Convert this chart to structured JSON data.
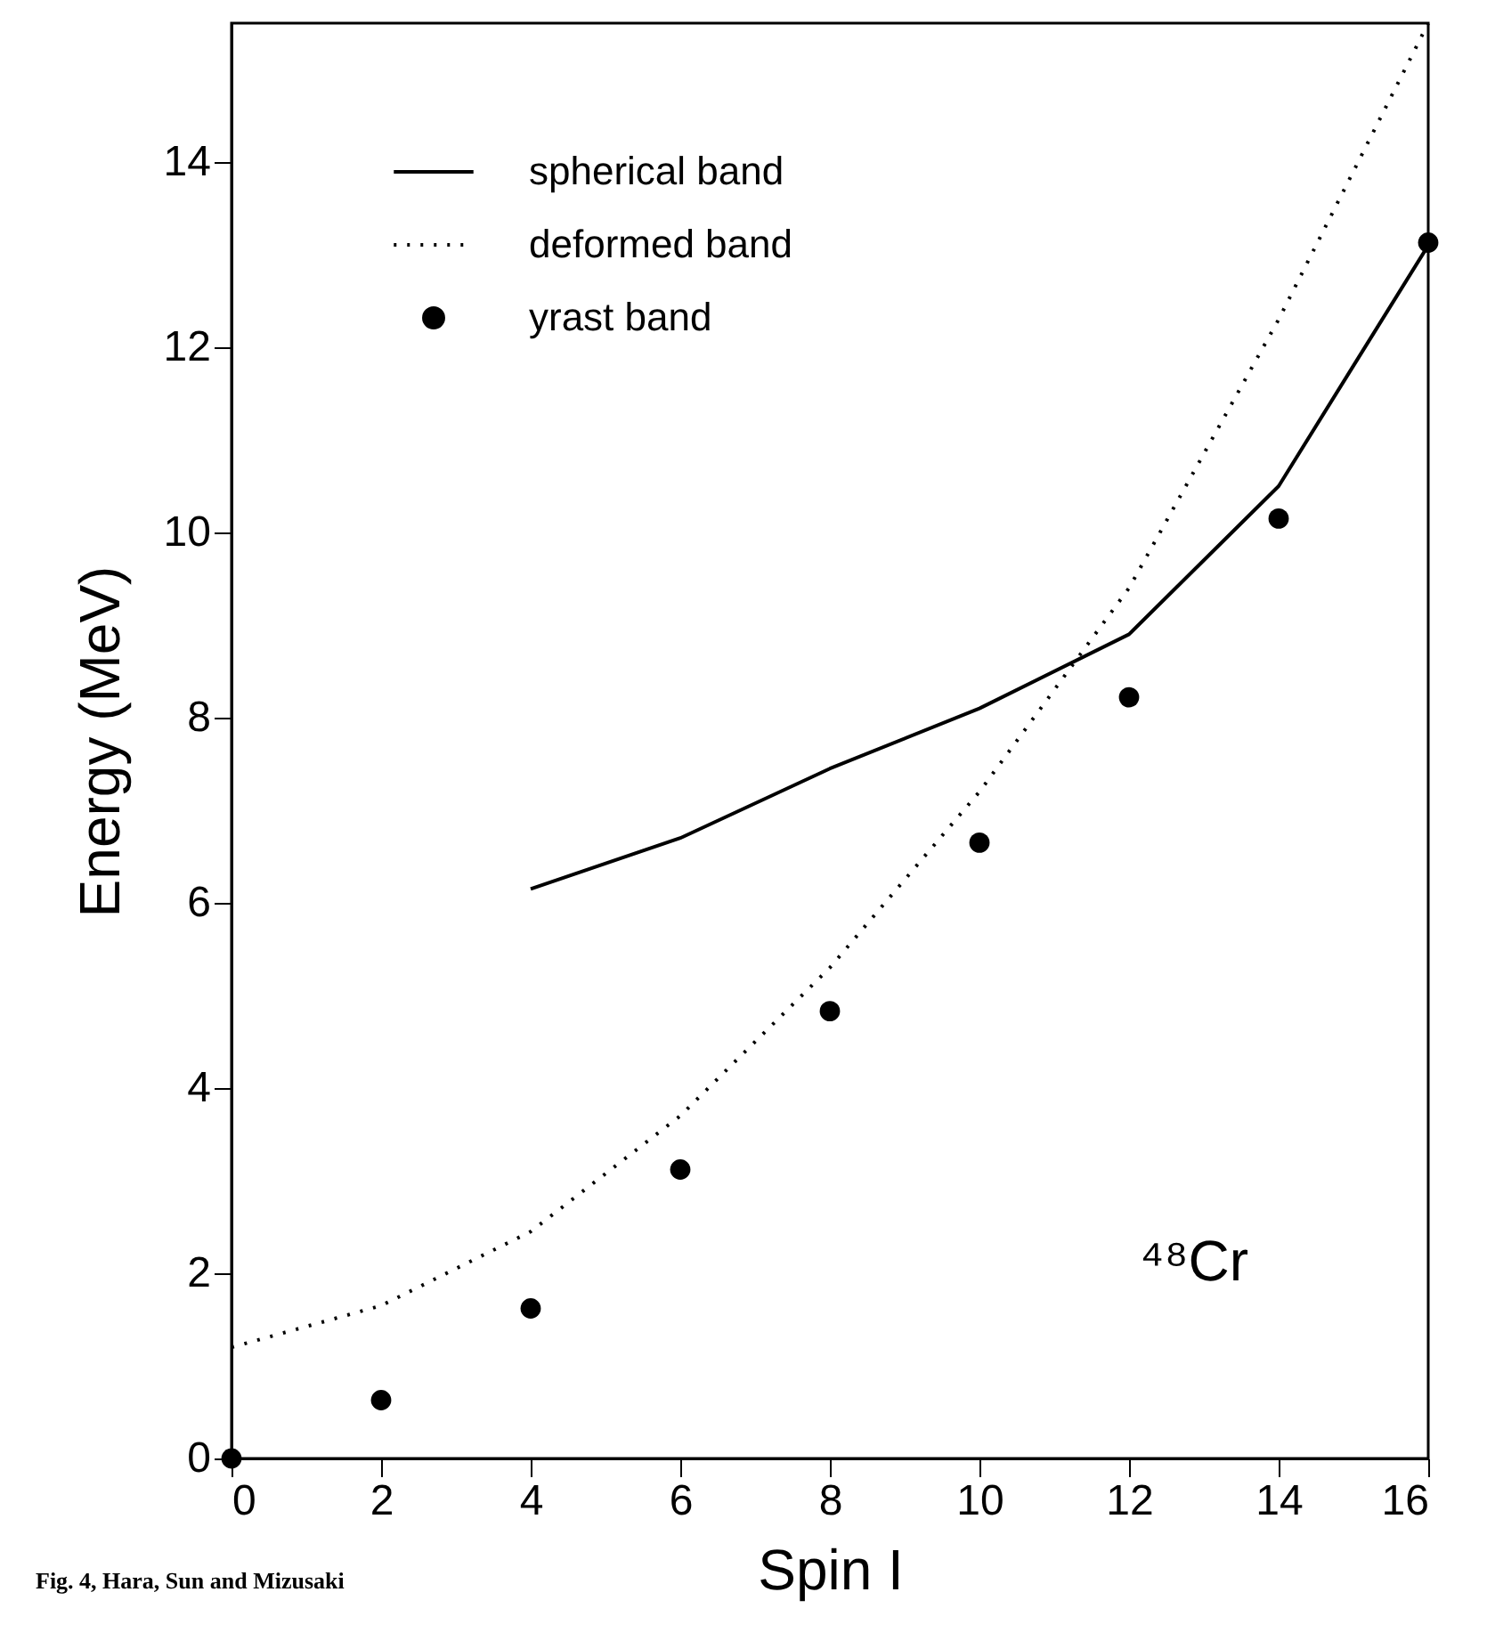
{
  "chart_data": {
    "type": "line",
    "xlabel": "Spin I",
    "ylabel": "Energy (MeV)",
    "x": [
      0,
      2,
      4,
      6,
      8,
      10,
      12,
      14,
      16
    ],
    "xlim": [
      0,
      16
    ],
    "xticks": [
      0,
      2,
      4,
      6,
      8,
      10,
      12,
      14,
      16
    ],
    "ylim": [
      0,
      15.5
    ],
    "yticks": [
      0,
      2,
      4,
      6,
      8,
      10,
      12,
      14
    ],
    "grid": false,
    "legend": "top left",
    "series": [
      {
        "name": "spherical band",
        "line_style": "solid",
        "color": "#000000",
        "values": [
          null,
          null,
          6.15,
          6.7,
          7.45,
          8.1,
          8.9,
          10.5,
          13.1
        ]
      },
      {
        "name": "deformed band",
        "line_style": "dotted",
        "color": "#000000",
        "values": [
          1.2,
          1.65,
          2.45,
          3.7,
          5.3,
          7.2,
          9.4,
          12.3,
          15.5
        ]
      },
      {
        "name": "yrast band",
        "type": "scatter",
        "marker": "circle",
        "color": "#000000",
        "values": [
          0,
          0.63,
          1.62,
          3.12,
          4.83,
          6.65,
          8.22,
          10.15,
          13.13
        ]
      }
    ],
    "annotations": [
      "⁴⁸Cr",
      "Fig. 4, Hara, Sun and Mizusaki"
    ]
  }
}
